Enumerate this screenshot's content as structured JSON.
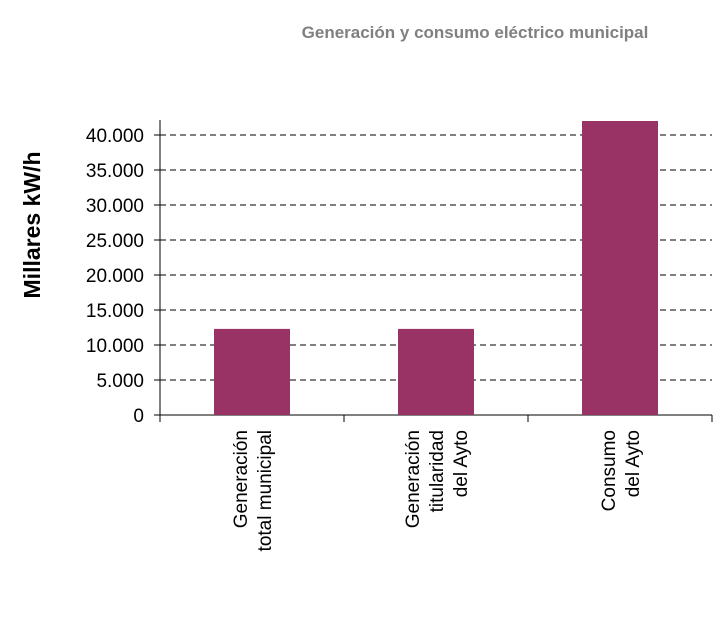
{
  "chart_data": {
    "type": "bar",
    "title": "Generación y consumo eléctrico municipal",
    "y_label": "Millares kW/h",
    "categories": [
      "Generación\ntotal municipal",
      "Generación\ntitularidad\ndel Ayto",
      "Consumo\ndel Ayto"
    ],
    "values": [
      12300,
      12300,
      42000
    ],
    "color": "#993366",
    "ylim": [
      0,
      45000
    ],
    "yticks": [
      0,
      {
        "value": 5000,
        "label": "5.000"
      },
      {
        "value": 10000,
        "label": "10.000"
      },
      {
        "value": 15000,
        "label": "15.000"
      },
      {
        "value": 20000,
        "label": "20.000"
      },
      {
        "value": 25000,
        "label": "25.000"
      },
      {
        "value": 30000,
        "label": "30.000"
      },
      {
        "value": 35000,
        "label": "35.000"
      },
      {
        "value": 40000,
        "label": "40.000"
      }
    ],
    "grid": true
  }
}
